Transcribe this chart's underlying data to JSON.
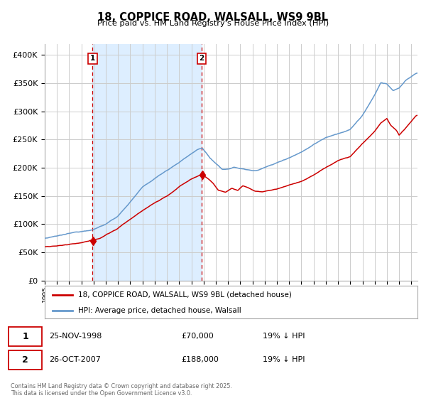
{
  "title": "18, COPPICE ROAD, WALSALL, WS9 9BL",
  "subtitle": "Price paid vs. HM Land Registry's House Price Index (HPI)",
  "legend_line1": "18, COPPICE ROAD, WALSALL, WS9 9BL (detached house)",
  "legend_line2": "HPI: Average price, detached house, Walsall",
  "annotation1_date": "25-NOV-1998",
  "annotation1_price": "£70,000",
  "annotation1_hpi": "19% ↓ HPI",
  "annotation2_date": "26-OCT-2007",
  "annotation2_price": "£188,000",
  "annotation2_hpi": "19% ↓ HPI",
  "footer": "Contains HM Land Registry data © Crown copyright and database right 2025.\nThis data is licensed under the Open Government Licence v3.0.",
  "red_color": "#cc0000",
  "blue_color": "#6699cc",
  "shaded_color": "#ddeeff",
  "grid_color": "#cccccc",
  "background_color": "#ffffff",
  "sale1_year": 1998.917,
  "sale1_price": 70000,
  "sale2_year": 2007.833,
  "sale2_price": 188000,
  "year_start": 1995,
  "year_end": 2025.5,
  "ylim_max": 420000,
  "ytick_interval": 50000
}
